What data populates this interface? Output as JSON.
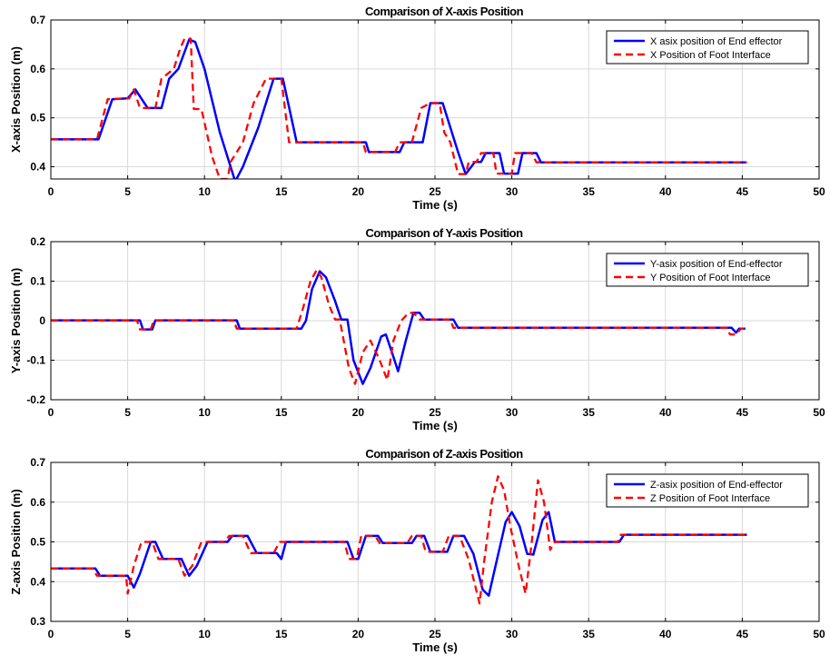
{
  "chart_data": [
    {
      "type": "line",
      "title": "Comparison of X-axis Position",
      "xlabel": "Time (s)",
      "ylabel": "X-axis Position (m)",
      "xlim": [
        0,
        50
      ],
      "ylim": [
        0.375,
        0.7
      ],
      "xticks": [
        "0",
        "5",
        "10",
        "15",
        "20",
        "25",
        "30",
        "35",
        "40",
        "45",
        "50"
      ],
      "yticks": [
        "0.4",
        "0.5",
        "0.6",
        "0.7"
      ],
      "grid": true,
      "legend_position": "top-right",
      "series": [
        {
          "name": "X asix position of End effector",
          "color": "#0000ff",
          "style": "solid",
          "points": [
            [
              0,
              0.456
            ],
            [
              3.1,
              0.456
            ],
            [
              4.0,
              0.538
            ],
            [
              5.0,
              0.54
            ],
            [
              5.5,
              0.558
            ],
            [
              6.3,
              0.52
            ],
            [
              7.2,
              0.52
            ],
            [
              7.7,
              0.58
            ],
            [
              8.3,
              0.6
            ],
            [
              9.0,
              0.66
            ],
            [
              9.4,
              0.655
            ],
            [
              10.0,
              0.6
            ],
            [
              11.0,
              0.47
            ],
            [
              12.0,
              0.37
            ],
            [
              12.5,
              0.4
            ],
            [
              13.5,
              0.48
            ],
            [
              14.5,
              0.58
            ],
            [
              15.1,
              0.58
            ],
            [
              16.0,
              0.45
            ],
            [
              20.5,
              0.45
            ],
            [
              20.7,
              0.43
            ],
            [
              22.7,
              0.43
            ],
            [
              23.0,
              0.45
            ],
            [
              24.2,
              0.45
            ],
            [
              24.7,
              0.53
            ],
            [
              25.5,
              0.53
            ],
            [
              26.5,
              0.43
            ],
            [
              27.0,
              0.385
            ],
            [
              27.6,
              0.41
            ],
            [
              28.0,
              0.41
            ],
            [
              28.3,
              0.428
            ],
            [
              29.2,
              0.428
            ],
            [
              29.5,
              0.386
            ],
            [
              30.4,
              0.386
            ],
            [
              30.7,
              0.428
            ],
            [
              31.6,
              0.428
            ],
            [
              31.9,
              0.409
            ],
            [
              45.3,
              0.409
            ]
          ]
        },
        {
          "name": "X Position of Foot Interface",
          "color": "#ff0000",
          "style": "dashed",
          "points": [
            [
              0,
              0.456
            ],
            [
              3.0,
              0.456
            ],
            [
              3.7,
              0.538
            ],
            [
              5.1,
              0.54
            ],
            [
              5.4,
              0.558
            ],
            [
              5.8,
              0.52
            ],
            [
              6.8,
              0.52
            ],
            [
              7.2,
              0.58
            ],
            [
              8.0,
              0.6
            ],
            [
              8.4,
              0.64
            ],
            [
              8.7,
              0.662
            ],
            [
              9.1,
              0.662
            ],
            [
              9.3,
              0.518
            ],
            [
              9.8,
              0.518
            ],
            [
              10.5,
              0.42
            ],
            [
              11.0,
              0.375
            ],
            [
              11.5,
              0.375
            ],
            [
              11.7,
              0.41
            ],
            [
              12.5,
              0.45
            ],
            [
              13.2,
              0.53
            ],
            [
              14.0,
              0.58
            ],
            [
              15.0,
              0.58
            ],
            [
              15.5,
              0.45
            ],
            [
              20.3,
              0.45
            ],
            [
              20.5,
              0.43
            ],
            [
              22.4,
              0.43
            ],
            [
              22.7,
              0.45
            ],
            [
              23.5,
              0.45
            ],
            [
              24.1,
              0.52
            ],
            [
              24.7,
              0.53
            ],
            [
              25.3,
              0.53
            ],
            [
              25.6,
              0.47
            ],
            [
              26.0,
              0.45
            ],
            [
              26.5,
              0.385
            ],
            [
              27.0,
              0.385
            ],
            [
              27.2,
              0.41
            ],
            [
              27.7,
              0.41
            ],
            [
              28.0,
              0.428
            ],
            [
              28.8,
              0.428
            ],
            [
              29.0,
              0.386
            ],
            [
              30.0,
              0.386
            ],
            [
              30.2,
              0.428
            ],
            [
              31.3,
              0.428
            ],
            [
              31.6,
              0.409
            ],
            [
              45.3,
              0.409
            ]
          ]
        }
      ]
    },
    {
      "type": "line",
      "title": "Comparison of Y-axis Position",
      "xlabel": "Time (s)",
      "ylabel": "Y-axis Position (m)",
      "xlim": [
        0,
        50
      ],
      "ylim": [
        -0.2,
        0.2
      ],
      "xticks": [
        "0",
        "5",
        "10",
        "15",
        "20",
        "25",
        "30",
        "35",
        "40",
        "45",
        "50"
      ],
      "yticks": [
        "-0.2",
        "-0.1",
        "0",
        "0.1",
        "0.2"
      ],
      "grid": true,
      "legend_position": "top-right",
      "series": [
        {
          "name": "Y-asix position of End-effector",
          "color": "#0000ff",
          "style": "solid",
          "points": [
            [
              0,
              0.001
            ],
            [
              5.8,
              0.001
            ],
            [
              6.0,
              -0.022
            ],
            [
              6.6,
              -0.022
            ],
            [
              6.8,
              0.001
            ],
            [
              12.1,
              0.001
            ],
            [
              12.3,
              -0.02
            ],
            [
              16.3,
              -0.02
            ],
            [
              16.6,
              0.0
            ],
            [
              17.0,
              0.08
            ],
            [
              17.5,
              0.125
            ],
            [
              17.9,
              0.11
            ],
            [
              18.5,
              0.05
            ],
            [
              18.9,
              0.003
            ],
            [
              19.3,
              0.003
            ],
            [
              19.7,
              -0.1
            ],
            [
              20.3,
              -0.16
            ],
            [
              20.8,
              -0.12
            ],
            [
              21.5,
              -0.04
            ],
            [
              21.8,
              -0.035
            ],
            [
              22.2,
              -0.08
            ],
            [
              22.6,
              -0.128
            ],
            [
              23.1,
              -0.05
            ],
            [
              23.6,
              0.02
            ],
            [
              24.0,
              0.02
            ],
            [
              24.3,
              0.003
            ],
            [
              26.2,
              0.003
            ],
            [
              26.5,
              -0.018
            ],
            [
              44.3,
              -0.018
            ],
            [
              44.6,
              -0.03
            ],
            [
              44.8,
              -0.02
            ],
            [
              45.2,
              -0.02
            ]
          ]
        },
        {
          "name": "Y Position of Foot Interface",
          "color": "#ff0000",
          "style": "dashed",
          "points": [
            [
              0,
              0.001
            ],
            [
              5.6,
              0.001
            ],
            [
              5.8,
              -0.022
            ],
            [
              6.5,
              -0.022
            ],
            [
              6.7,
              0.001
            ],
            [
              11.9,
              0.001
            ],
            [
              12.1,
              -0.02
            ],
            [
              16.0,
              -0.02
            ],
            [
              16.4,
              0.03
            ],
            [
              16.9,
              0.1
            ],
            [
              17.3,
              0.128
            ],
            [
              17.6,
              0.11
            ],
            [
              18.1,
              0.04
            ],
            [
              18.5,
              0.003
            ],
            [
              18.8,
              0.003
            ],
            [
              19.4,
              -0.12
            ],
            [
              19.8,
              -0.16
            ],
            [
              20.3,
              -0.08
            ],
            [
              20.8,
              -0.05
            ],
            [
              21.4,
              -0.1
            ],
            [
              21.9,
              -0.15
            ],
            [
              22.3,
              -0.05
            ],
            [
              22.8,
              0.0
            ],
            [
              23.3,
              0.02
            ],
            [
              23.6,
              0.02
            ],
            [
              24.0,
              0.003
            ],
            [
              26.0,
              0.003
            ],
            [
              26.2,
              -0.018
            ],
            [
              44.0,
              -0.018
            ],
            [
              44.2,
              -0.035
            ],
            [
              44.6,
              -0.035
            ],
            [
              44.9,
              -0.02
            ],
            [
              45.2,
              -0.02
            ]
          ]
        }
      ]
    },
    {
      "type": "line",
      "title": "Comparison of Z-axis Position",
      "xlabel": "Time (s)",
      "ylabel": "Z-axis Position (m)",
      "xlim": [
        0,
        50
      ],
      "ylim": [
        0.3,
        0.7
      ],
      "xticks": [
        "0",
        "5",
        "10",
        "15",
        "20",
        "25",
        "30",
        "35",
        "40",
        "45",
        "50"
      ],
      "yticks": [
        "0.3",
        "0.4",
        "0.5",
        "0.6",
        "0.7"
      ],
      "grid": true,
      "legend_position": "top-right",
      "series": [
        {
          "name": "Z-asix position of End-effector",
          "color": "#0000ff",
          "style": "solid",
          "points": [
            [
              0,
              0.433
            ],
            [
              2.9,
              0.433
            ],
            [
              3.2,
              0.415
            ],
            [
              5.0,
              0.415
            ],
            [
              5.4,
              0.385
            ],
            [
              5.8,
              0.42
            ],
            [
              6.5,
              0.5
            ],
            [
              6.8,
              0.5
            ],
            [
              7.3,
              0.457
            ],
            [
              8.5,
              0.457
            ],
            [
              9.0,
              0.415
            ],
            [
              9.5,
              0.44
            ],
            [
              10.2,
              0.5
            ],
            [
              11.5,
              0.5
            ],
            [
              11.8,
              0.515
            ],
            [
              12.8,
              0.515
            ],
            [
              13.4,
              0.472
            ],
            [
              14.7,
              0.472
            ],
            [
              15.0,
              0.457
            ],
            [
              15.3,
              0.5
            ],
            [
              19.3,
              0.5
            ],
            [
              19.7,
              0.457
            ],
            [
              20.0,
              0.457
            ],
            [
              20.5,
              0.515
            ],
            [
              21.3,
              0.515
            ],
            [
              21.6,
              0.497
            ],
            [
              23.5,
              0.497
            ],
            [
              23.8,
              0.515
            ],
            [
              24.3,
              0.515
            ],
            [
              24.7,
              0.475
            ],
            [
              25.8,
              0.475
            ],
            [
              26.2,
              0.515
            ],
            [
              26.9,
              0.515
            ],
            [
              27.5,
              0.47
            ],
            [
              28.1,
              0.38
            ],
            [
              28.5,
              0.365
            ],
            [
              29.0,
              0.45
            ],
            [
              29.6,
              0.55
            ],
            [
              30.0,
              0.575
            ],
            [
              30.5,
              0.54
            ],
            [
              31.0,
              0.47
            ],
            [
              31.4,
              0.468
            ],
            [
              32.0,
              0.555
            ],
            [
              32.4,
              0.575
            ],
            [
              32.8,
              0.5
            ],
            [
              37.0,
              0.5
            ],
            [
              37.3,
              0.518
            ],
            [
              45.3,
              0.518
            ]
          ]
        },
        {
          "name": "Z Position of Foot Interface",
          "color": "#ff0000",
          "style": "dashed",
          "points": [
            [
              0,
              0.433
            ],
            [
              2.7,
              0.433
            ],
            [
              3.0,
              0.415
            ],
            [
              4.9,
              0.415
            ],
            [
              5.0,
              0.37
            ],
            [
              5.4,
              0.44
            ],
            [
              5.9,
              0.5
            ],
            [
              6.6,
              0.5
            ],
            [
              7.0,
              0.457
            ],
            [
              8.3,
              0.457
            ],
            [
              8.7,
              0.415
            ],
            [
              9.2,
              0.44
            ],
            [
              9.8,
              0.5
            ],
            [
              11.3,
              0.5
            ],
            [
              11.6,
              0.515
            ],
            [
              12.5,
              0.515
            ],
            [
              13.0,
              0.472
            ],
            [
              14.5,
              0.472
            ],
            [
              14.9,
              0.5
            ],
            [
              19.1,
              0.5
            ],
            [
              19.4,
              0.457
            ],
            [
              19.9,
              0.457
            ],
            [
              20.2,
              0.515
            ],
            [
              21.1,
              0.515
            ],
            [
              21.4,
              0.497
            ],
            [
              23.2,
              0.497
            ],
            [
              23.5,
              0.515
            ],
            [
              24.1,
              0.515
            ],
            [
              24.4,
              0.475
            ],
            [
              25.5,
              0.475
            ],
            [
              25.9,
              0.515
            ],
            [
              26.6,
              0.515
            ],
            [
              27.2,
              0.455
            ],
            [
              27.9,
              0.345
            ],
            [
              28.2,
              0.45
            ],
            [
              28.7,
              0.6
            ],
            [
              29.1,
              0.665
            ],
            [
              29.5,
              0.63
            ],
            [
              29.9,
              0.54
            ],
            [
              30.5,
              0.43
            ],
            [
              30.9,
              0.37
            ],
            [
              31.3,
              0.5
            ],
            [
              31.7,
              0.655
            ],
            [
              32.1,
              0.6
            ],
            [
              32.5,
              0.48
            ],
            [
              32.8,
              0.5
            ],
            [
              36.9,
              0.5
            ],
            [
              37.1,
              0.518
            ],
            [
              45.3,
              0.518
            ]
          ]
        }
      ]
    }
  ]
}
